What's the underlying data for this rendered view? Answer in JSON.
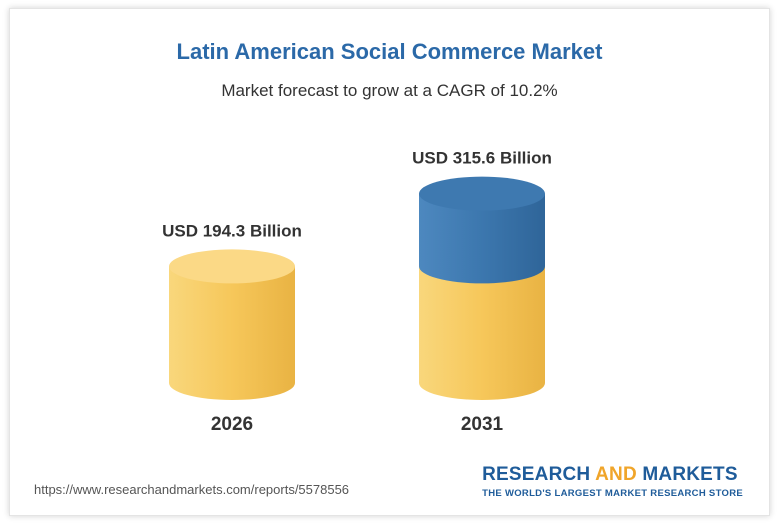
{
  "chart_data": {
    "type": "bar",
    "title": "Latin American Social Commerce Market",
    "subtitle": "Market forecast to grow at a CAGR of 10.2%",
    "categories": [
      "2026",
      "2031"
    ],
    "values": [
      194.3,
      315.6
    ],
    "value_labels": [
      "USD 194.3 Billion",
      "USD 315.6 Billion"
    ],
    "unit": "USD Billion",
    "colors": {
      "base": "#f6c75a",
      "growth": "#3c77ae",
      "title": "#2b69a8"
    }
  },
  "footer": {
    "url": "https://www.researchandmarkets.com/reports/5578556",
    "logo_part1": "RESEARCH ",
    "logo_part2": "AND",
    "logo_part3": " MARKETS",
    "tagline": "THE WORLD'S LARGEST MARKET RESEARCH STORE"
  }
}
